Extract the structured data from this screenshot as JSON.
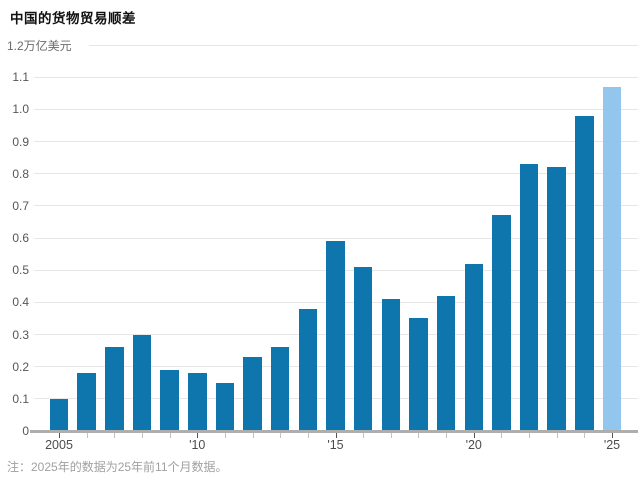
{
  "header": {
    "title": "中国的货物贸易顺差"
  },
  "y_axis": {
    "top_label": "1.2万亿美元",
    "unit": "万亿美元"
  },
  "footer": {
    "note": "注：2025年的数据为25年前11个月数据。"
  },
  "chart_data": {
    "type": "bar",
    "title": "中国的货物贸易顺差",
    "xlabel": "",
    "ylabel": "万亿美元",
    "categories": [
      2005,
      2006,
      2007,
      2008,
      2009,
      2010,
      2011,
      2012,
      2013,
      2014,
      2015,
      2016,
      2017,
      2018,
      2019,
      2020,
      2021,
      2022,
      2023,
      2024,
      2025
    ],
    "values": [
      0.1,
      0.18,
      0.26,
      0.3,
      0.19,
      0.18,
      0.15,
      0.23,
      0.26,
      0.38,
      0.59,
      0.51,
      0.41,
      0.35,
      0.42,
      0.52,
      0.67,
      0.83,
      0.82,
      0.98,
      1.07
    ],
    "highlight_index": 20,
    "highlight_note": "2025年的数据为25年前11个月数据",
    "ylim": [
      0,
      1.2
    ],
    "ytick_step": 0.1,
    "ytick_top_label": "1.2万亿美元",
    "xtick_labels": {
      "2005": "2005",
      "2010": "'10",
      "2015": "'15",
      "2020": "'20",
      "2025": "'25"
    },
    "grid": true,
    "legend": null,
    "colors": {
      "bar": "#0e76ad",
      "bar_highlight": "#93c6ec",
      "grid": "#e7e7e7",
      "axis": "#aeaeae",
      "tick_major": "#555555",
      "tick_minor": "#c2c2c2"
    }
  }
}
